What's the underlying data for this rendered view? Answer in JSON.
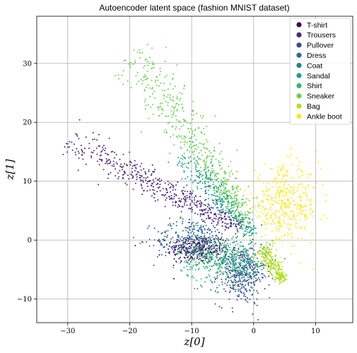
{
  "chart_data": {
    "type": "scatter",
    "title": "Autoencoder latent space (fashion MNIST dataset)",
    "xlabel": "z[0]",
    "ylabel": "z[1]",
    "xlim": [
      -35,
      16
    ],
    "ylim": [
      -14,
      38
    ],
    "xticks": [
      -30,
      -20,
      -10,
      0,
      10
    ],
    "yticks": [
      -10,
      0,
      10,
      20,
      30
    ],
    "grid": true,
    "legend_position": "top-right",
    "series": [
      {
        "name": "T-shirt",
        "color": "#440154",
        "clusters": [
          {
            "x": -9,
            "y": -1.5,
            "sx": 2.5,
            "sy": 1.2,
            "n": 260
          }
        ]
      },
      {
        "name": "Trousers",
        "color": "#482878",
        "segments": [
          {
            "x0": -30,
            "y0": 17,
            "x1": -2,
            "y1": 2,
            "spread": 1.8,
            "n": 500
          }
        ]
      },
      {
        "name": "Pullover",
        "color": "#3e4989",
        "clusters": [
          {
            "x": -2,
            "y": -6,
            "sx": 2.0,
            "sy": 2.5,
            "n": 280
          }
        ]
      },
      {
        "name": "Dress",
        "color": "#31688e",
        "clusters": [
          {
            "x": -10,
            "y": 0,
            "sx": 3.0,
            "sy": 1.8,
            "n": 320
          }
        ]
      },
      {
        "name": "Coat",
        "color": "#26828e",
        "clusters": [
          {
            "x": -2,
            "y": -4,
            "sx": 2.2,
            "sy": 2.0,
            "n": 280
          }
        ]
      },
      {
        "name": "Sandal",
        "color": "#1f9e89",
        "segments": [
          {
            "x0": -12,
            "y0": 15,
            "x1": 0,
            "y1": 1,
            "spread": 1.6,
            "n": 320
          }
        ]
      },
      {
        "name": "Shirt",
        "color": "#35b779",
        "clusters": [
          {
            "x": -6,
            "y": -3,
            "sx": 3.0,
            "sy": 2.0,
            "n": 300
          }
        ]
      },
      {
        "name": "Sneaker",
        "color": "#6ece58",
        "segments": [
          {
            "x0": -20,
            "y0": 32,
            "x1": -1,
            "y1": 4,
            "spread": 2.5,
            "n": 520
          }
        ]
      },
      {
        "name": "Bag",
        "color": "#b5de2b",
        "segments": [
          {
            "x0": 1,
            "y0": -1,
            "x1": 5,
            "y1": -7,
            "spread": 1.0,
            "n": 260
          }
        ]
      },
      {
        "name": "Ankle boot",
        "color": "#fde725",
        "clusters": [
          {
            "x": 5,
            "y": 6,
            "sx": 2.8,
            "sy": 3.2,
            "n": 440
          }
        ]
      }
    ]
  }
}
